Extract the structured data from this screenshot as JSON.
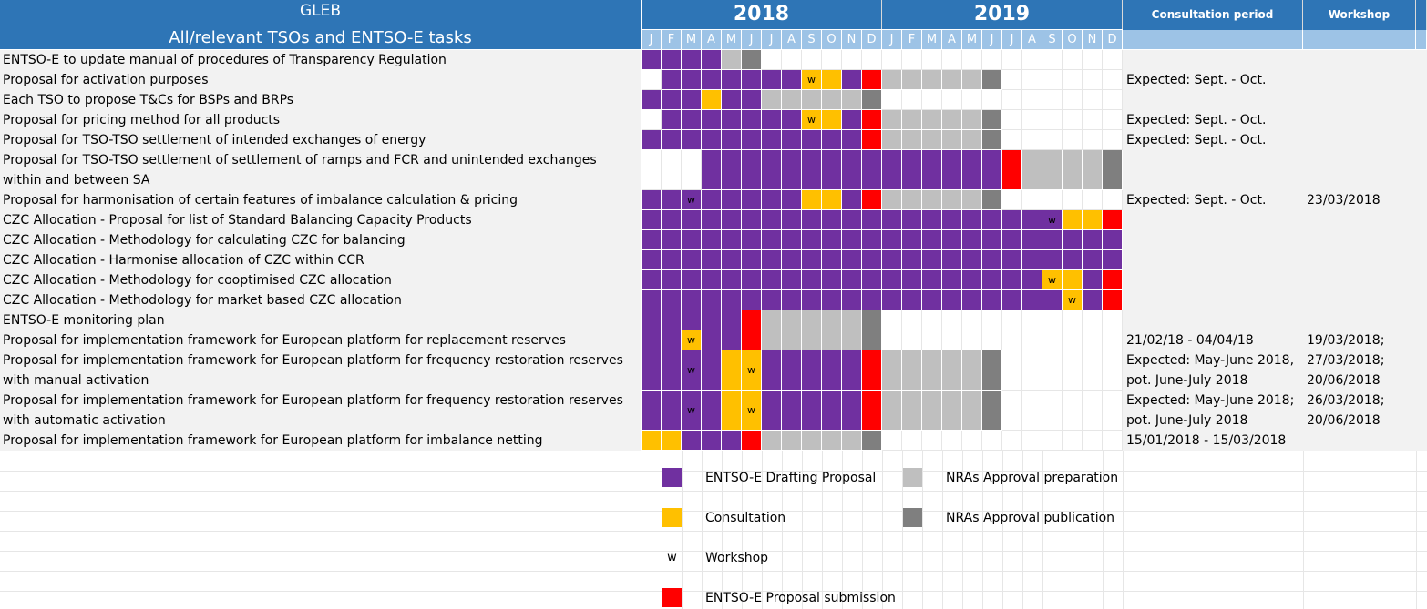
{
  "header": {
    "title": "GLEB",
    "subtitle": "All/relevant TSOs and ENTSO-E tasks",
    "years": [
      "2018",
      "2019"
    ],
    "consultation_col": "Consultation period",
    "workshop_col": "Workshop",
    "months": [
      "J",
      "F",
      "M",
      "A",
      "M",
      "J",
      "J",
      "A",
      "S",
      "O",
      "N",
      "D",
      "J",
      "F",
      "M",
      "A",
      "M",
      "J",
      "J",
      "A",
      "S",
      "O",
      "N",
      "D"
    ]
  },
  "workshop_marker": "w",
  "tasks": [
    {
      "label": "ENTSO-E to update manual of procedures of Transparency Regulation",
      "cells": "DDDDAP..................",
      "w": [],
      "consultation": [
        "",
        ""
      ],
      "workshop": [
        "",
        ""
      ]
    },
    {
      "label": "Proposal for activation purposes",
      "cells": ".DDDDDDDCCDSAAAAAP......",
      "w": [
        8
      ],
      "consultation": [
        "Expected: Sept. - Oct.",
        ""
      ],
      "workshop": [
        "",
        ""
      ]
    },
    {
      "label": "Each TSO to propose T&Cs for BSPs and BRPs",
      "cells": "DDDCDDAAAAAP............",
      "w": [],
      "consultation": [
        "",
        ""
      ],
      "workshop": [
        "",
        ""
      ]
    },
    {
      "label": "Proposal for pricing method for all products",
      "cells": ".DDDDDDDCCDSAAAAAP......",
      "w": [
        8
      ],
      "consultation": [
        "Expected: Sept. - Oct.",
        ""
      ],
      "workshop": [
        "",
        ""
      ]
    },
    {
      "label": "Proposal for TSO-TSO settlement of intended exchanges of energy",
      "cells": "DDDDDDDDDDDSAAAAAP......",
      "w": [],
      "consultation": [
        "Expected: Sept. - Oct.",
        ""
      ],
      "workshop": [
        "",
        ""
      ]
    },
    {
      "label": "Proposal for TSO-TSO settlement of settlement of ramps and FCR and unintended exchanges within and between SA",
      "cells": "...DDDDDDDDDDDDDDDSAAAAP",
      "w": [],
      "consultation": [
        "",
        ""
      ],
      "workshop": [
        "",
        ""
      ]
    },
    {
      "label": "Proposal for harmonisation of certain features of imbalance calculation & pricing",
      "cells": "DDDDDDDDCCDSAAAAAP......",
      "w": [
        2
      ],
      "consultation": [
        "Expected: Sept. - Oct.",
        ""
      ],
      "workshop": [
        "23/03/2018",
        ""
      ]
    },
    {
      "label": "CZC Allocation - Proposal for list of Standard Balancing Capacity Products",
      "cells": "DDDDDDDDDDDDDDDDDDDDDCCS",
      "w": [
        20
      ],
      "consultation": [
        "",
        ""
      ],
      "workshop": [
        "",
        ""
      ]
    },
    {
      "label": "CZC Allocation - Methodology for calculating CZC for balancing",
      "cells": "DDDDDDDDDDDDDDDDDDDDDDDD",
      "w": [],
      "consultation": [
        "",
        ""
      ],
      "workshop": [
        "",
        ""
      ]
    },
    {
      "label": "CZC Allocation - Harmonise allocation of CZC within CCR",
      "cells": "DDDDDDDDDDDDDDDDDDDDDDDD",
      "w": [],
      "consultation": [
        "",
        ""
      ],
      "workshop": [
        "",
        ""
      ]
    },
    {
      "label": "CZC Allocation - Methodology for cooptimised CZC allocation",
      "cells": "DDDDDDDDDDDDDDDDDDDDCCDS",
      "w": [
        20
      ],
      "consultation": [
        "",
        ""
      ],
      "workshop": [
        "",
        ""
      ]
    },
    {
      "label": "CZC Allocation - Methodology for market based CZC allocation",
      "cells": "DDDDDDDDDDDDDDDDDDDDDCDS",
      "w": [
        21
      ],
      "consultation": [
        "",
        ""
      ],
      "workshop": [
        "",
        ""
      ]
    },
    {
      "label": "ENTSO-E monitoring plan",
      "cells": "DDDDDSAAAAAP............",
      "w": [],
      "consultation": [
        "",
        ""
      ],
      "workshop": [
        "",
        ""
      ]
    },
    {
      "label": "Proposal for implementation framework for European platform for replacement reserves",
      "cells": "DDCDDSAAAAAP............",
      "w": [
        2
      ],
      "consultation": [
        "21/02/18 - 04/04/18",
        ""
      ],
      "workshop": [
        "19/03/2018;",
        ""
      ]
    },
    {
      "label": "Proposal for implementation framework for European platform for frequency restoration reserves with manual activation",
      "cells": "DDDDCCDDDDDSAAAAAP......",
      "w": [
        2,
        5
      ],
      "consultation": [
        "Expected: May-June 2018,",
        "pot. June-July 2018"
      ],
      "workshop": [
        "27/03/2018;",
        "20/06/2018"
      ]
    },
    {
      "label": "Proposal for implementation framework for European platform for frequency restoration reserves with automatic activation",
      "cells": "DDDDCCDDDDDSAAAAAP......",
      "w": [
        2,
        5
      ],
      "consultation": [
        "Expected: May-June 2018;",
        "pot. June-July 2018"
      ],
      "workshop": [
        "26/03/2018;",
        "20/06/2018"
      ]
    },
    {
      "label": "Proposal for implementation framework for European platform for imbalance netting",
      "cells": "CCDDDSAAAAAP............",
      "w": [],
      "consultation": [
        "15/01/2018 - 15/03/2018",
        ""
      ],
      "workshop": [
        "",
        ""
      ]
    }
  ],
  "legend": {
    "drafting": "ENTSO-E Drafting Proposal",
    "consultation": "Consultation",
    "workshop_symbol": "w",
    "workshop": "Workshop",
    "submission": "ENTSO-E Proposal submission",
    "nra_prep": "NRAs Approval preparation",
    "nra_pub": "NRAs Approval publication"
  },
  "colors": {
    "header_blue": "#2e75b6",
    "month_blue": "#9dc3e6",
    "drafting": "#7030a0",
    "consultation": "#ffc000",
    "submission": "#ff0000",
    "nra_prep": "#bfbfbf",
    "nra_pub": "#7f7f7f"
  }
}
